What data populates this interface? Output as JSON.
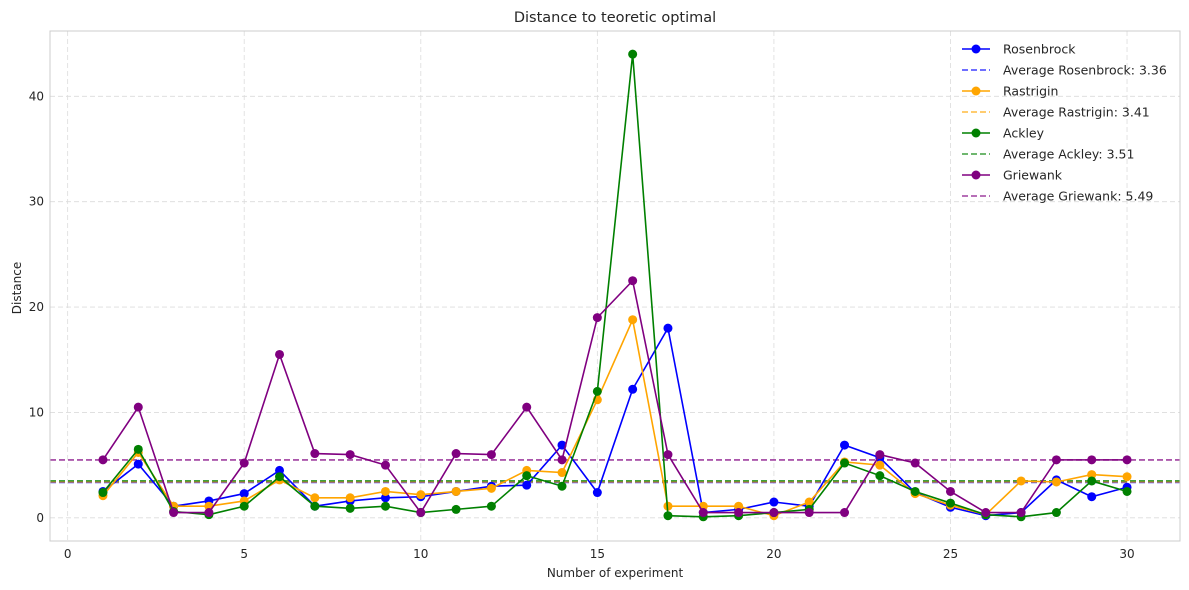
{
  "chart_data": {
    "type": "line",
    "title": "Distance to teoretic optimal",
    "xlabel": "Number of experiment",
    "ylabel": "Distance",
    "xlim": [
      -0.5,
      31.5
    ],
    "ylim": [
      -2.2,
      46.2
    ],
    "xticks": [
      0,
      5,
      10,
      15,
      20,
      25,
      30
    ],
    "yticks": [
      0,
      10,
      20,
      30,
      40
    ],
    "grid": true,
    "legend_position": "top-right",
    "x": [
      1,
      2,
      3,
      4,
      5,
      6,
      7,
      8,
      9,
      10,
      11,
      12,
      13,
      14,
      15,
      16,
      17,
      18,
      19,
      20,
      21,
      22,
      23,
      24,
      25,
      26,
      27,
      28,
      29,
      30
    ],
    "series": [
      {
        "name": "Rosenbrock",
        "color": "#0000ff",
        "values": [
          2.5,
          5.1,
          1.1,
          1.6,
          2.3,
          4.5,
          1.1,
          1.6,
          1.9,
          2.0,
          2.5,
          3.0,
          3.1,
          6.9,
          2.4,
          12.2,
          18.0,
          0.5,
          0.8,
          1.5,
          1.1,
          6.9,
          5.7,
          2.4,
          1.0,
          0.2,
          0.5,
          3.6,
          2.0,
          2.9
        ],
        "average": 3.36,
        "average_label": "Average Rosenbrock: 3.36"
      },
      {
        "name": "Rastrigin",
        "color": "#ffa500",
        "values": [
          2.1,
          6.2,
          1.1,
          1.1,
          1.6,
          3.6,
          1.9,
          1.9,
          2.5,
          2.2,
          2.5,
          2.8,
          4.5,
          4.3,
          11.2,
          18.8,
          1.1,
          1.1,
          1.1,
          0.2,
          1.5,
          5.3,
          5.0,
          2.3,
          1.2,
          0.3,
          3.5,
          3.4,
          4.1,
          3.9
        ],
        "average": 3.41,
        "average_label": "Average Rastrigin: 3.41"
      },
      {
        "name": "Ackley",
        "color": "#008000",
        "values": [
          2.4,
          6.5,
          0.6,
          0.3,
          1.1,
          3.9,
          1.1,
          0.9,
          1.1,
          0.5,
          0.8,
          1.1,
          4.0,
          3.0,
          12.0,
          44.0,
          0.2,
          0.1,
          0.2,
          0.5,
          0.8,
          5.2,
          4.0,
          2.5,
          1.4,
          0.3,
          0.1,
          0.5,
          3.5,
          2.5
        ],
        "average": 3.51,
        "average_label": "Average Ackley: 3.51"
      },
      {
        "name": "Griewank",
        "color": "#800080",
        "values": [
          5.5,
          10.5,
          0.5,
          0.5,
          5.2,
          15.5,
          6.1,
          6.0,
          5.0,
          0.5,
          6.1,
          6.0,
          10.5,
          5.5,
          19.0,
          22.5,
          6.0,
          0.5,
          0.5,
          0.5,
          0.5,
          0.5,
          6.0,
          5.2,
          2.5,
          0.5,
          0.5,
          5.5,
          5.5,
          5.5
        ],
        "average": 5.49,
        "average_label": "Average Griewank: 5.49"
      }
    ]
  }
}
